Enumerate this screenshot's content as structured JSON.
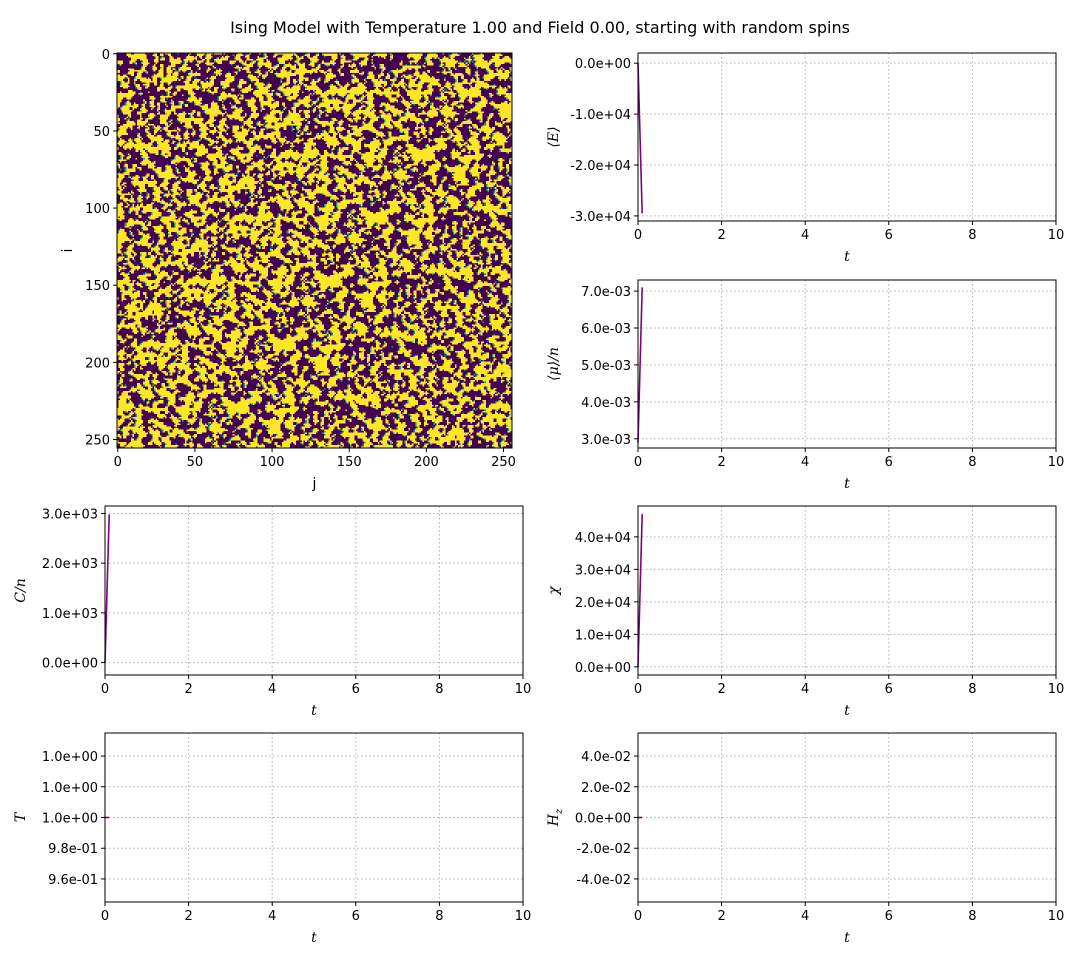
{
  "figure": {
    "title": "Ising Model with Temperature 1.00 and Field 0.00, starting with random spins"
  },
  "colors": {
    "spin_up": "#fde725",
    "spin_down": "#440154",
    "boundary": "#21918c",
    "trace": "#800080"
  },
  "chart_data": [
    {
      "type": "heatmap",
      "id": "lattice",
      "xlabel": "j",
      "ylabel": "i",
      "xlim": [
        0,
        255
      ],
      "ylim": [
        255,
        0
      ],
      "xticks": [
        0,
        50,
        100,
        150,
        200,
        250
      ],
      "yticks": [
        0,
        50,
        100,
        150,
        200,
        250
      ],
      "size": [
        256,
        256
      ],
      "values": "random spins ±1 (yellow = +1, purple = -1)",
      "colormap": "viridis"
    },
    {
      "type": "line",
      "id": "energy",
      "xlabel": "t",
      "ylabel": "⟨E⟩",
      "xlim": [
        0,
        10
      ],
      "ylim": [
        -31000,
        2000
      ],
      "xticks": [
        0,
        2,
        4,
        6,
        8,
        10
      ],
      "yticks": [
        0,
        -10000,
        -20000,
        -30000
      ],
      "ytick_labels": [
        "0.0e+00",
        "-1.0e+04",
        "-2.0e+04",
        "-3.0e+04"
      ],
      "x": [
        0,
        0.1
      ],
      "y": [
        0,
        -29500
      ],
      "grid": true
    },
    {
      "type": "line",
      "id": "magnetization",
      "xlabel": "t",
      "ylabel": "⟨μ⟩/n",
      "xlim": [
        0,
        10
      ],
      "ylim": [
        0.00275,
        0.0073
      ],
      "xticks": [
        0,
        2,
        4,
        6,
        8,
        10
      ],
      "yticks": [
        0.003,
        0.004,
        0.005,
        0.006,
        0.007
      ],
      "ytick_labels": [
        "3.0e-03",
        "4.0e-03",
        "5.0e-03",
        "6.0e-03",
        "7.0e-03"
      ],
      "x": [
        0,
        0.1
      ],
      "y": [
        0.0029,
        0.0071
      ],
      "grid": true
    },
    {
      "type": "line",
      "id": "heat_capacity",
      "xlabel": "t",
      "ylabel": "C/n",
      "xlim": [
        0,
        10
      ],
      "ylim": [
        -250,
        3150
      ],
      "xticks": [
        0,
        2,
        4,
        6,
        8,
        10
      ],
      "yticks": [
        0,
        1000,
        2000,
        3000
      ],
      "ytick_labels": [
        "0.0e+00",
        "1.0e+03",
        "2.0e+03",
        "3.0e+03"
      ],
      "x": [
        0,
        0.1
      ],
      "y": [
        0,
        2980
      ],
      "grid": true
    },
    {
      "type": "line",
      "id": "susceptibility",
      "xlabel": "t",
      "ylabel": "χ",
      "xlim": [
        0,
        10
      ],
      "ylim": [
        -2500,
        49500
      ],
      "xticks": [
        0,
        2,
        4,
        6,
        8,
        10
      ],
      "yticks": [
        0,
        10000,
        20000,
        30000,
        40000
      ],
      "ytick_labels": [
        "0.0e+00",
        "1.0e+04",
        "2.0e+04",
        "3.0e+04",
        "4.0e+04"
      ],
      "x": [
        0,
        0.1
      ],
      "y": [
        0,
        47000
      ],
      "grid": true
    },
    {
      "type": "line",
      "id": "temperature",
      "xlabel": "t",
      "ylabel": "T",
      "xlim": [
        0,
        10
      ],
      "ylim": [
        0.945,
        1.055
      ],
      "xticks": [
        0,
        2,
        4,
        6,
        8,
        10
      ],
      "yticks": [
        0.96,
        0.98,
        1.0,
        1.02,
        1.04
      ],
      "ytick_labels": [
        "9.6e-01",
        "9.8e-01",
        "1.0e+00",
        "1.0e+00",
        "1.0e+00"
      ],
      "x": [
        0,
        0.1
      ],
      "y": [
        1.0,
        1.0
      ],
      "grid": true
    },
    {
      "type": "line",
      "id": "field",
      "xlabel": "t",
      "ylabel": "Hz",
      "xlim": [
        0,
        10
      ],
      "ylim": [
        -0.055,
        0.055
      ],
      "xticks": [
        0,
        2,
        4,
        6,
        8,
        10
      ],
      "yticks": [
        -0.04,
        -0.02,
        0,
        0.02,
        0.04
      ],
      "ytick_labels": [
        "-4.0e-02",
        "-2.0e-02",
        "0.0e+00",
        "2.0e-02",
        "4.0e-02"
      ],
      "x": [
        0,
        0.1
      ],
      "y": [
        0,
        0
      ],
      "grid": true
    }
  ]
}
